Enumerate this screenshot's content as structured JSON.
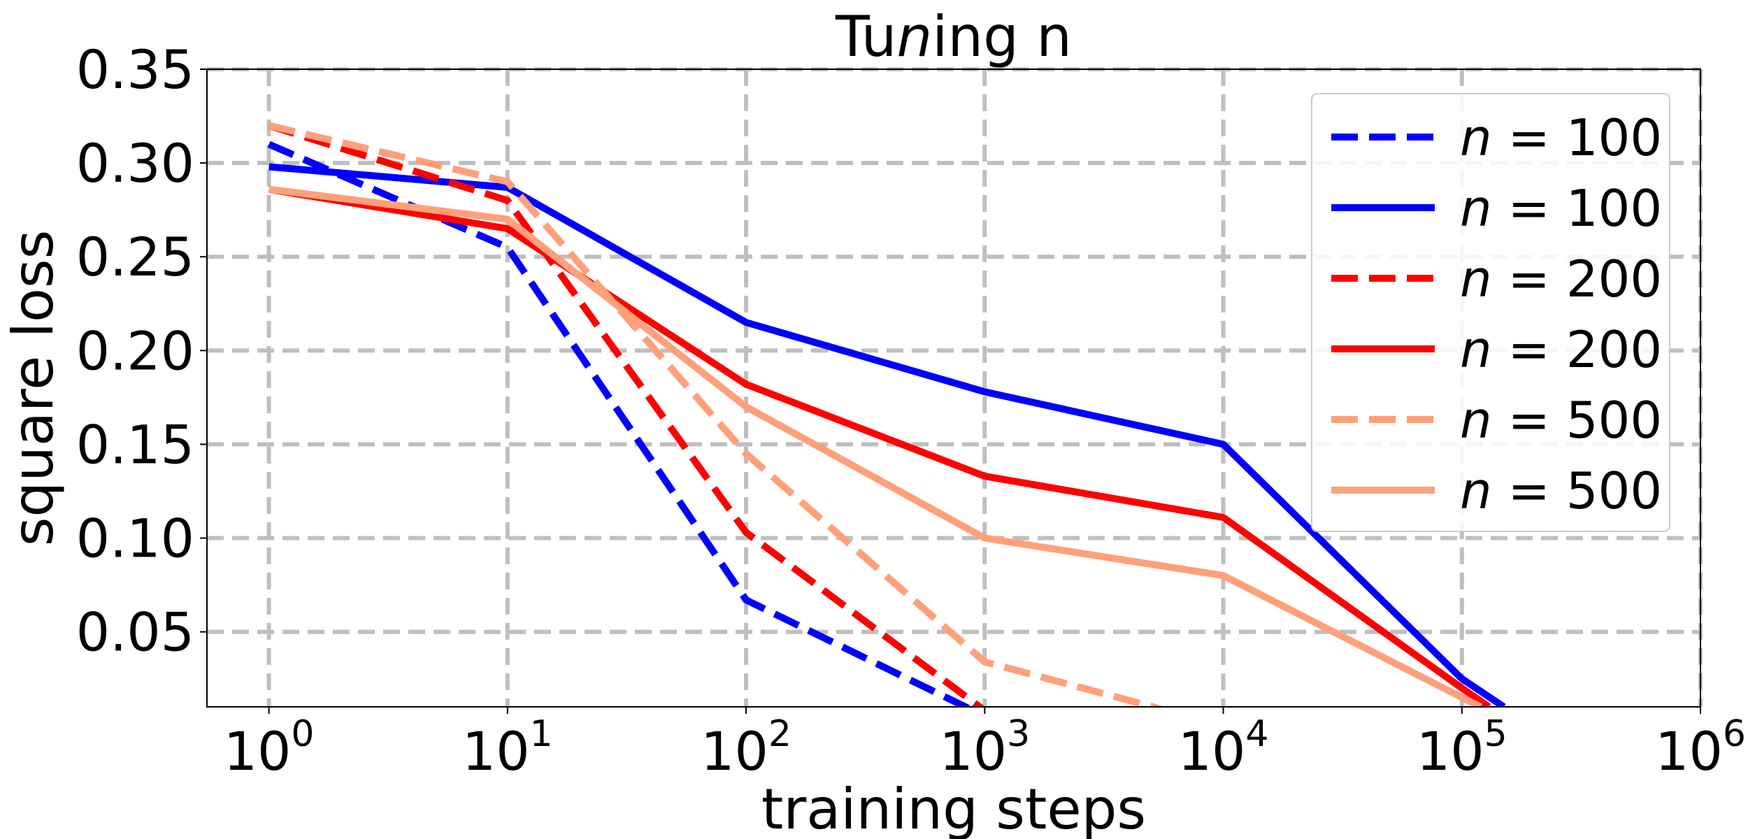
{
  "chart_data": {
    "type": "line",
    "title": "Tuning n",
    "xlabel": "training steps",
    "ylabel": "square loss",
    "xscale": "log",
    "xlim": [
      0.55,
      1000000
    ],
    "ylim": [
      0.01,
      0.35
    ],
    "xticks": [
      1,
      10,
      100,
      1000,
      10000,
      100000,
      1000000
    ],
    "xtick_labels": [
      "10^0",
      "10^1",
      "10^2",
      "10^3",
      "10^4",
      "10^5",
      "10^6"
    ],
    "yticks": [
      0.05,
      0.1,
      0.15,
      0.2,
      0.25,
      0.3,
      0.35
    ],
    "ytick_labels": [
      "0.05",
      "0.10",
      "0.15",
      "0.20",
      "0.25",
      "0.30",
      "0.35"
    ],
    "grid": true,
    "grid_color": "#bfbfbf",
    "legend_placement": "top-right",
    "series": [
      {
        "name": "n = 100",
        "color": "#0000ff",
        "dash": "dashed",
        "x": [
          1,
          10,
          100,
          1000
        ],
        "y": [
          0.31,
          0.255,
          0.067,
          0.005
        ]
      },
      {
        "name": "n = 100",
        "color": "#0000ff",
        "dash": "solid",
        "x": [
          1,
          10,
          100,
          1000,
          10000,
          100000,
          150000
        ],
        "y": [
          0.298,
          0.287,
          0.215,
          0.178,
          0.15,
          0.025,
          0.01
        ]
      },
      {
        "name": "n = 200",
        "color": "#ff0000",
        "dash": "dashed",
        "x": [
          1,
          10,
          100,
          1000
        ],
        "y": [
          0.32,
          0.28,
          0.103,
          0.008
        ]
      },
      {
        "name": "n = 200",
        "color": "#ff0000",
        "dash": "solid",
        "x": [
          1,
          10,
          100,
          1000,
          10000,
          100000,
          130000
        ],
        "y": [
          0.286,
          0.265,
          0.182,
          0.133,
          0.111,
          0.02,
          0.01
        ]
      },
      {
        "name": "n = 500",
        "color": "#ffa07a",
        "dash": "dashed",
        "x": [
          1,
          10,
          100,
          1000,
          10000
        ],
        "y": [
          0.32,
          0.29,
          0.145,
          0.034,
          0.0
        ]
      },
      {
        "name": "n = 500",
        "color": "#ffa07a",
        "dash": "solid",
        "x": [
          1,
          10,
          100,
          1000,
          10000,
          100000,
          120000
        ],
        "y": [
          0.286,
          0.27,
          0.17,
          0.1,
          0.08,
          0.015,
          0.01
        ]
      }
    ]
  }
}
